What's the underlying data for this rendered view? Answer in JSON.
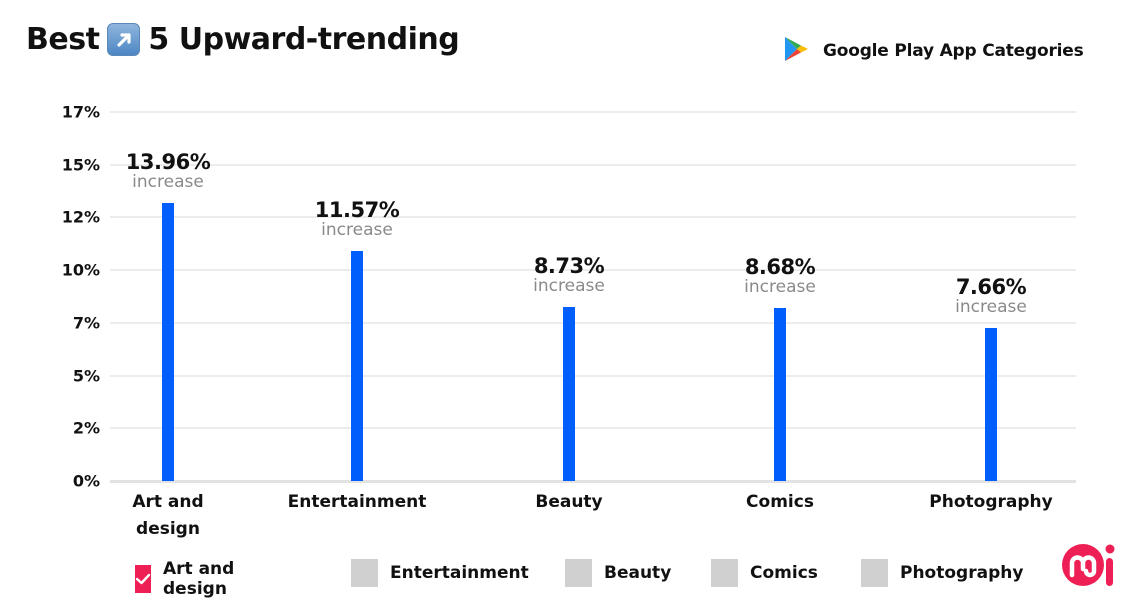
{
  "header": {
    "title_prefix": "Best",
    "title_emoji": "up-right-arrow-emoji",
    "title_suffix": "5 Upward-trending",
    "source_icon": "google-play-icon",
    "source_label": "Google Play App Categories"
  },
  "colors": {
    "bar": "#005efd",
    "legend_checked": "#ee1f55",
    "legend_unchecked": "#d0d0d0",
    "gridline": "#ececec",
    "sublabel": "#8a8a8a",
    "logo": "#ee1f55"
  },
  "chart_data": {
    "type": "bar",
    "title": "Best 5 Upward-trending Google Play App Categories",
    "xlabel": "",
    "ylabel": "",
    "categories": [
      "Art and design",
      "Entertainment",
      "Beauty",
      "Comics",
      "Photography"
    ],
    "values": [
      13.96,
      11.57,
      8.73,
      8.68,
      7.66
    ],
    "value_labels": [
      "13.96%",
      "11.57%",
      "8.73%",
      "8.68%",
      "7.66%"
    ],
    "value_sublabel": "increase",
    "yticks": [
      "17%",
      "15%",
      "12%",
      "10%",
      "7%",
      "5%",
      "2%",
      "0%"
    ],
    "ylim": [
      0,
      17.5
    ],
    "grid": true,
    "legend_position": "bottom"
  },
  "legend": {
    "items": [
      {
        "label": "Art and design",
        "checked": true
      },
      {
        "label": "Entertainment",
        "checked": false
      },
      {
        "label": "Beauty",
        "checked": false
      },
      {
        "label": "Comics",
        "checked": false
      },
      {
        "label": "Photography",
        "checked": false
      }
    ]
  },
  "branding": {
    "logo": "mi-logo"
  }
}
